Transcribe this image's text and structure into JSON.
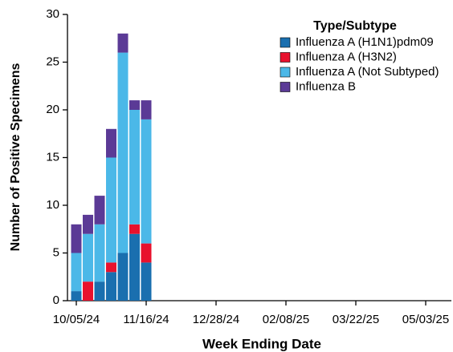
{
  "chart_data": {
    "type": "stacked-bar",
    "x_label": "Week Ending Date",
    "y_label": "Number of Positive Specimens",
    "legend_title": "Type/Subtype",
    "legend_position": "upper right",
    "categories": [
      "10/05/24",
      null,
      null,
      null,
      null,
      null,
      "11/16/24",
      null,
      null,
      null,
      null,
      null,
      "12/28/24",
      null,
      null,
      null,
      null,
      null,
      "02/08/25",
      null,
      null,
      null,
      null,
      null,
      "03/22/25",
      null,
      null,
      null,
      null,
      null,
      "05/03/25",
      null,
      null
    ],
    "series": [
      {
        "name": "Influenza A (H1N1)pdm09",
        "color": "#1a6faf",
        "values": [
          1,
          0,
          2,
          3,
          5,
          7,
          4,
          null,
          null,
          null,
          null,
          null,
          null,
          null,
          null,
          null,
          null,
          null,
          null,
          null,
          null,
          null,
          null,
          null,
          null,
          null,
          null,
          null,
          null,
          null,
          null,
          null,
          null
        ]
      },
      {
        "name": "Influenza A (H3N2)",
        "color": "#e8112d",
        "values": [
          0,
          2,
          0,
          1,
          0,
          1,
          2,
          null,
          null,
          null,
          null,
          null,
          null,
          null,
          null,
          null,
          null,
          null,
          null,
          null,
          null,
          null,
          null,
          null,
          null,
          null,
          null,
          null,
          null,
          null,
          null,
          null,
          null
        ]
      },
      {
        "name": "Influenza A (Not Subtyped)",
        "color": "#4bb8e8",
        "values": [
          4,
          5,
          6,
          11,
          21,
          12,
          13,
          null,
          null,
          null,
          null,
          null,
          null,
          null,
          null,
          null,
          null,
          null,
          null,
          null,
          null,
          null,
          null,
          null,
          null,
          null,
          null,
          null,
          null,
          null,
          null,
          null,
          null
        ]
      },
      {
        "name": "Influenza B",
        "color": "#5b3a96",
        "values": [
          3,
          2,
          3,
          3,
          2,
          1,
          2,
          null,
          null,
          null,
          null,
          null,
          null,
          null,
          null,
          null,
          null,
          null,
          null,
          null,
          null,
          null,
          null,
          null,
          null,
          null,
          null,
          null,
          null,
          null,
          null,
          null,
          null
        ]
      }
    ],
    "ylim": [
      0,
      30
    ],
    "yticks": [
      0,
      5,
      10,
      15,
      20,
      25,
      30
    ],
    "grid": false
  }
}
